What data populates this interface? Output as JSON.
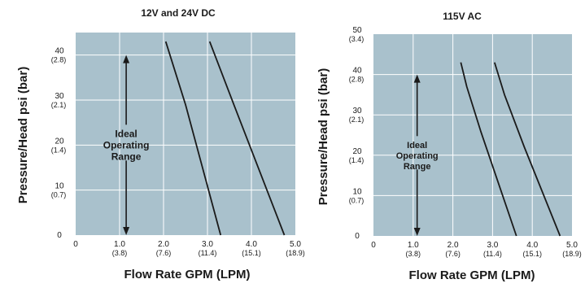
{
  "chart_data": [
    {
      "type": "line",
      "title": "12V and 24V DC",
      "xlabel": "Flow Rate GPM (LPM)",
      "ylabel": "Pressure/Head psi (bar)",
      "xlim": [
        0,
        5.0
      ],
      "ylim": [
        0,
        45
      ],
      "grid": true,
      "x_ticks": [
        {
          "value": 0,
          "label": "0",
          "sub": ""
        },
        {
          "value": 1.0,
          "label": "1.0",
          "sub": "(3.8)"
        },
        {
          "value": 2.0,
          "label": "2.0",
          "sub": "(7.6)"
        },
        {
          "value": 3.0,
          "label": "3.0",
          "sub": "(11.4)"
        },
        {
          "value": 4.0,
          "label": "4.0",
          "sub": "(15.1)"
        },
        {
          "value": 5.0,
          "label": "5.0",
          "sub": "(18.9)"
        }
      ],
      "y_ticks": [
        {
          "value": 0,
          "label": "0",
          "sub": ""
        },
        {
          "value": 10,
          "label": "10",
          "sub": "(0.7)"
        },
        {
          "value": 20,
          "label": "20",
          "sub": "(1.4)"
        },
        {
          "value": 30,
          "label": "30",
          "sub": "(2.1)"
        },
        {
          "value": 40,
          "label": "40",
          "sub": "(2.8)"
        }
      ],
      "series": [
        {
          "x": [
            2.05,
            2.5,
            3.3
          ],
          "y": [
            43,
            29,
            0
          ]
        },
        {
          "x": [
            3.05,
            3.6,
            4.75
          ],
          "y": [
            43,
            29,
            0
          ]
        }
      ],
      "annotation": {
        "lines": [
          "Ideal",
          "Operating",
          "Range"
        ],
        "x": 1.15,
        "y_range": [
          0,
          40
        ]
      }
    },
    {
      "type": "line",
      "title": "115V AC",
      "xlabel": "Flow Rate GPM (LPM)",
      "ylabel": "Pressure/Head psi (bar)",
      "xlim": [
        0,
        5.0
      ],
      "ylim": [
        0,
        50
      ],
      "grid": true,
      "x_ticks": [
        {
          "value": 0,
          "label": "0",
          "sub": ""
        },
        {
          "value": 1.0,
          "label": "1.0",
          "sub": "(3.8)"
        },
        {
          "value": 2.0,
          "label": "2.0",
          "sub": "(7.6)"
        },
        {
          "value": 3.0,
          "label": "3.0",
          "sub": "(11.4)"
        },
        {
          "value": 4.0,
          "label": "4.0",
          "sub": "(15.1)"
        },
        {
          "value": 5.0,
          "label": "5.0",
          "sub": "(18.9)"
        }
      ],
      "y_ticks": [
        {
          "value": 0,
          "label": "0",
          "sub": ""
        },
        {
          "value": 10,
          "label": "10",
          "sub": "(0.7)"
        },
        {
          "value": 20,
          "label": "20",
          "sub": "(1.4)"
        },
        {
          "value": 30,
          "label": "30",
          "sub": "(2.1)"
        },
        {
          "value": 40,
          "label": "40",
          "sub": "(2.8)"
        },
        {
          "value": 50,
          "label": "50",
          "sub": "(3.4)"
        }
      ],
      "series": [
        {
          "x": [
            2.2,
            2.35,
            2.7,
            3.6
          ],
          "y": [
            43,
            37,
            26,
            0
          ]
        },
        {
          "x": [
            3.05,
            3.3,
            3.8,
            4.7
          ],
          "y": [
            43,
            35,
            22,
            0
          ]
        }
      ],
      "annotation": {
        "lines": [
          "Ideal",
          "Operating",
          "Range"
        ],
        "x": 1.1,
        "y_range": [
          0,
          40
        ]
      }
    }
  ],
  "colors": {
    "plot_background": "#a9c1cc",
    "grid": "#ffffff",
    "line": "#1a1a1a"
  }
}
